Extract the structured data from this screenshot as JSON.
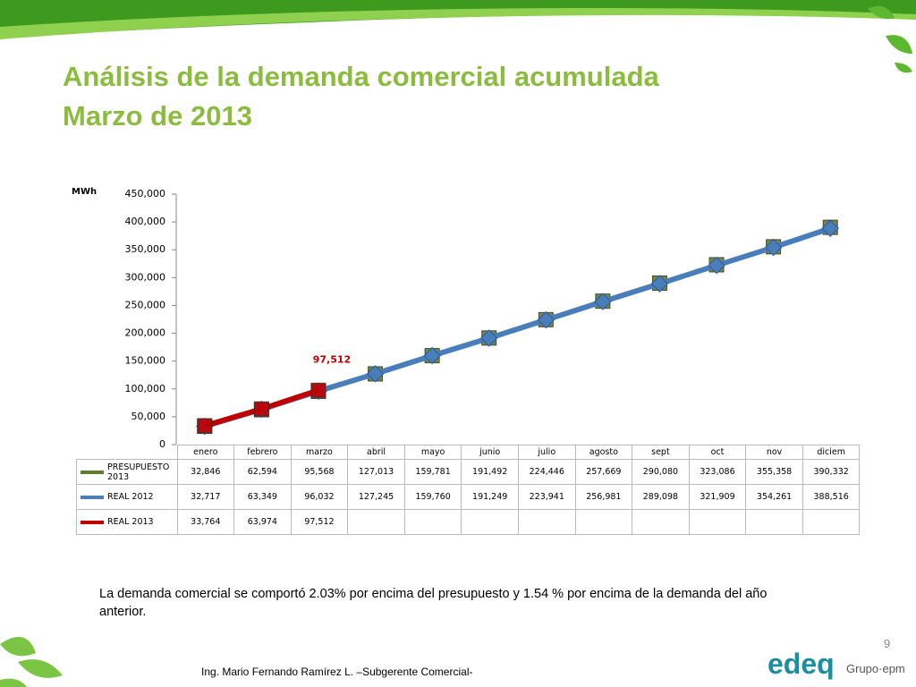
{
  "chart_data": {
    "type": "line",
    "title": "Análisis de la demanda comercial acumulada",
    "subtitle": "Marzo de 2013",
    "ylabel": "MWh",
    "categories": [
      "enero",
      "febrero",
      "marzo",
      "abril",
      "mayo",
      "junio",
      "julio",
      "agosto",
      "sept",
      "oct",
      "nov",
      "diciem"
    ],
    "ylim": [
      0,
      450000
    ],
    "yticks": [
      0,
      {
        "value": 50000,
        "label": "50,000"
      },
      {
        "value": 100000,
        "label": "100,000"
      },
      {
        "value": 150000,
        "label": "150,000"
      },
      {
        "value": 200000,
        "label": "200,000"
      },
      {
        "value": 250000,
        "label": "250,000"
      },
      {
        "value": 300000,
        "label": "300,000"
      },
      {
        "value": 350000,
        "label": "350,000"
      },
      {
        "value": 400000,
        "label": "400,000"
      },
      {
        "value": 450000,
        "label": "450,000"
      }
    ],
    "series": [
      {
        "name": "PRESUPUESTO 2013",
        "color": "#5f7f2f",
        "marker": "square",
        "values": [
          32846,
          62594,
          95568,
          127013,
          159781,
          191492,
          224446,
          257669,
          290080,
          323086,
          355358,
          390332
        ],
        "value_labels": [
          "32,846",
          "62,594",
          "95,568",
          "127,013",
          "159,781",
          "191,492",
          "224,446",
          "257,669",
          "290,080",
          "323,086",
          "355,358",
          "390,332"
        ]
      },
      {
        "name": "REAL 2012",
        "color": "#4a7ebb",
        "marker": "diamond",
        "values": [
          32717,
          63349,
          96032,
          127245,
          159760,
          191249,
          223941,
          256981,
          289098,
          321909,
          354261,
          388516
        ],
        "value_labels": [
          "32,717",
          "63,349",
          "96,032",
          "127,245",
          "159,760",
          "191,249",
          "223,941",
          "256,981",
          "289,098",
          "321,909",
          "354,261",
          "388,516"
        ]
      },
      {
        "name": "REAL 2013",
        "color": "#c00000",
        "marker": "square",
        "values": [
          33764,
          63974,
          97512,
          null,
          null,
          null,
          null,
          null,
          null,
          null,
          null,
          null
        ],
        "value_labels": [
          "33,764",
          "63,974",
          "97,512",
          null,
          null,
          null,
          null,
          null,
          null,
          null,
          null,
          null
        ]
      }
    ],
    "annotation": {
      "series": 2,
      "index": 2
    },
    "note": "La demanda comercial se comportó 2.03% por encima del presupuesto y 1.54 % por encima de la demanda del año anterior.",
    "page_number": "9",
    "footer": "Ing. Mario Fernando Ramírez L. –Subgerente Comercial-",
    "logo": "edeq",
    "logo_group": "Grupo·epm"
  }
}
